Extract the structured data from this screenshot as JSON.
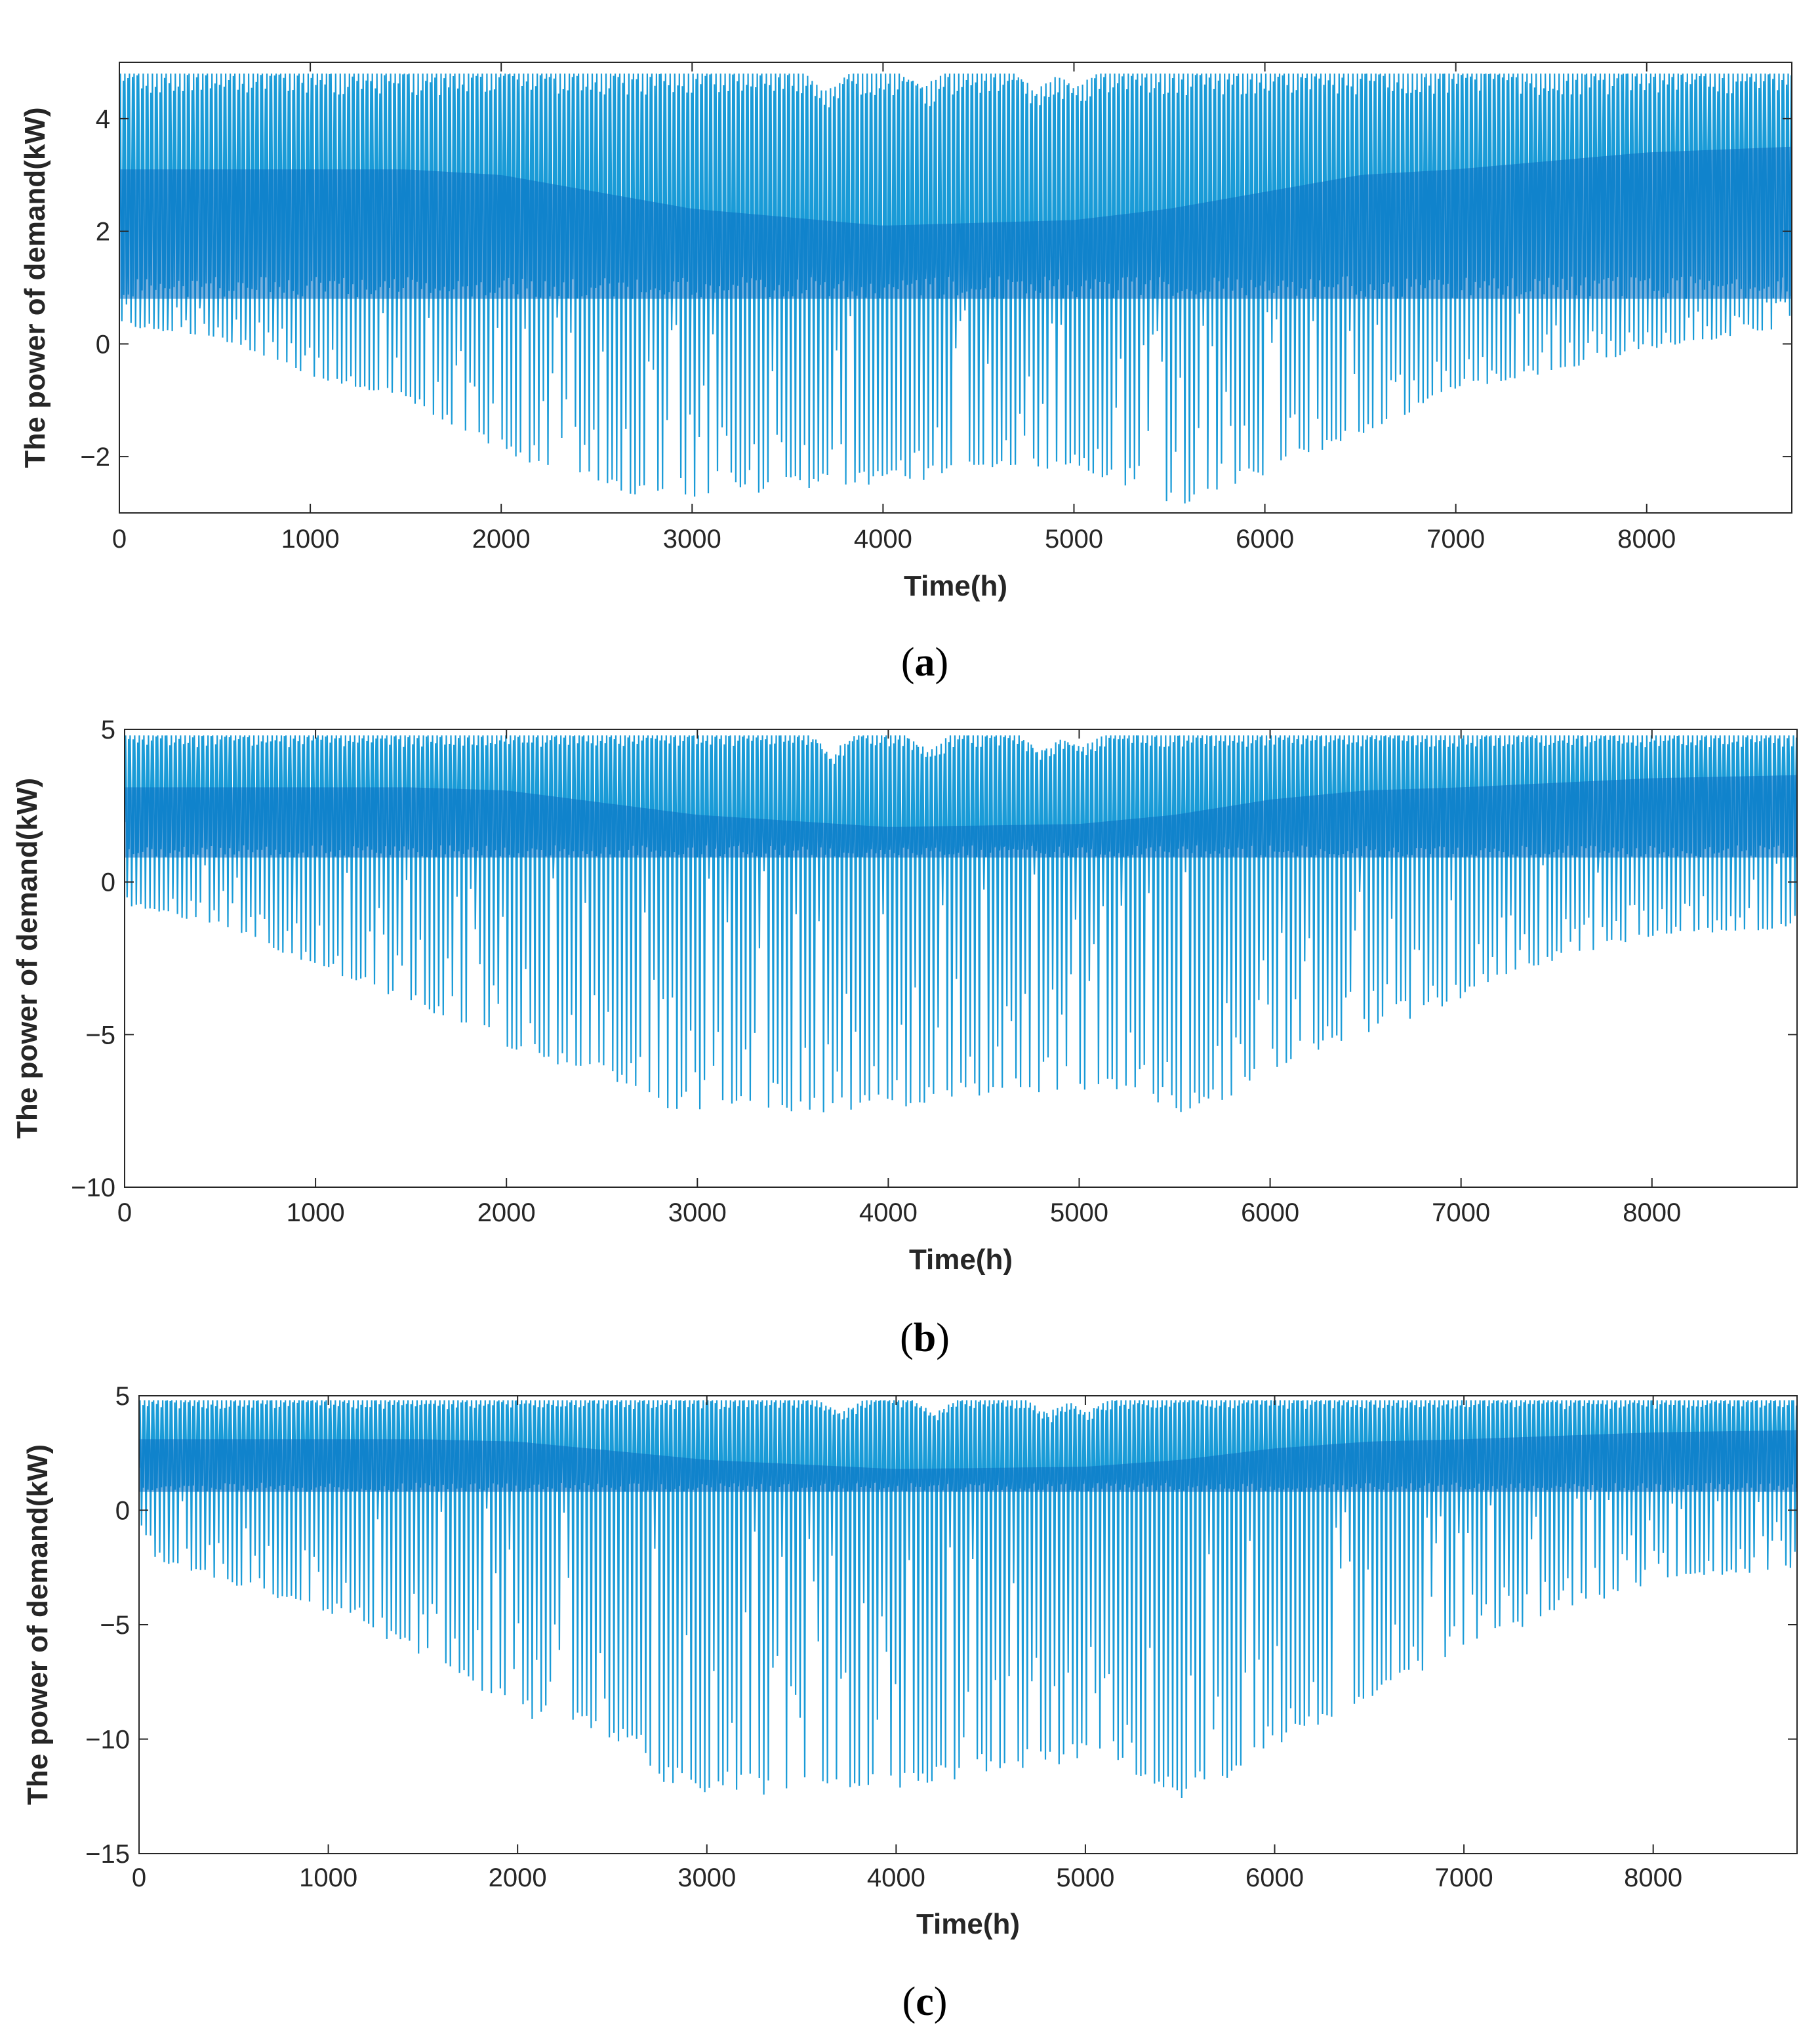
{
  "figure": {
    "colors": {
      "series": "#1a9bd7",
      "band": "#0a6fc2",
      "axis": "#262626",
      "background": "#ffffff"
    }
  },
  "chart_data": [
    {
      "id": "a",
      "type": "line",
      "caption_open": "(",
      "caption_letter": "a",
      "caption_close": ")",
      "xlabel": "Time(h)",
      "ylabel": "The power of demand(kW)",
      "xlim": [
        0,
        8760
      ],
      "ylim": [
        -3,
        5
      ],
      "xticks": [
        0,
        1000,
        2000,
        3000,
        4000,
        5000,
        6000,
        7000,
        8000
      ],
      "xtick_labels": [
        "0",
        "1000",
        "2000",
        "3000",
        "4000",
        "5000",
        "6000",
        "7000",
        "8000"
      ],
      "yticks": [
        -2,
        0,
        2,
        4
      ],
      "ytick_labels": [
        "−2",
        "0",
        "2",
        "4"
      ],
      "daily_max": 4.8,
      "band_low": 0.8,
      "envelope_min": [
        [
          0,
          0.3
        ],
        [
          500,
          0.1
        ],
        [
          1000,
          -0.6
        ],
        [
          1500,
          -1.0
        ],
        [
          2000,
          -2.0
        ],
        [
          2800,
          -2.8
        ],
        [
          3500,
          -2.6
        ],
        [
          4000,
          -2.5
        ],
        [
          4500,
          -2.3
        ],
        [
          5000,
          -2.2
        ],
        [
          5500,
          -2.9
        ],
        [
          5800,
          -2.6
        ],
        [
          6200,
          -2.0
        ],
        [
          6600,
          -1.5
        ],
        [
          7000,
          -0.8
        ],
        [
          7500,
          -0.5
        ],
        [
          8000,
          -0.1
        ],
        [
          8760,
          0.3
        ]
      ],
      "band_high": [
        [
          0,
          3.1
        ],
        [
          1500,
          3.1
        ],
        [
          2000,
          3.0
        ],
        [
          2500,
          2.7
        ],
        [
          3000,
          2.4
        ],
        [
          4000,
          2.1
        ],
        [
          5000,
          2.2
        ],
        [
          5500,
          2.4
        ],
        [
          6000,
          2.7
        ],
        [
          6500,
          3.0
        ],
        [
          7000,
          3.1
        ],
        [
          8000,
          3.4
        ],
        [
          8760,
          3.5
        ]
      ],
      "max_dips": [
        [
          3700,
          4.4
        ],
        [
          4200,
          4.5
        ],
        [
          4800,
          4.4
        ],
        [
          5000,
          4.5
        ]
      ]
    },
    {
      "id": "b",
      "type": "line",
      "caption_open": "(",
      "caption_letter": "b",
      "caption_close": ")",
      "xlabel": "Time(h)",
      "ylabel": "The power of demand(kW)",
      "xlim": [
        0,
        8760
      ],
      "ylim": [
        -10,
        5
      ],
      "xticks": [
        0,
        1000,
        2000,
        3000,
        4000,
        5000,
        6000,
        7000,
        8000
      ],
      "xtick_labels": [
        "0",
        "1000",
        "2000",
        "3000",
        "4000",
        "5000",
        "6000",
        "7000",
        "8000"
      ],
      "yticks": [
        -10,
        -5,
        0,
        5
      ],
      "ytick_labels": [
        "−10",
        "−5",
        "0",
        "5"
      ],
      "daily_max": 4.8,
      "band_low": 0.8,
      "envelope_min": [
        [
          0,
          -0.8
        ],
        [
          500,
          -1.5
        ],
        [
          1000,
          -2.8
        ],
        [
          1500,
          -4.0
        ],
        [
          2000,
          -5.5
        ],
        [
          2500,
          -6.5
        ],
        [
          2800,
          -7.5
        ],
        [
          3500,
          -7.7
        ],
        [
          4000,
          -7.5
        ],
        [
          4500,
          -7.0
        ],
        [
          5000,
          -6.8
        ],
        [
          5500,
          -7.7
        ],
        [
          5800,
          -7.0
        ],
        [
          6200,
          -5.8
        ],
        [
          6600,
          -4.8
        ],
        [
          7000,
          -3.8
        ],
        [
          7500,
          -2.5
        ],
        [
          8000,
          -1.8
        ],
        [
          8760,
          -1.5
        ]
      ],
      "band_high": [
        [
          0,
          3.1
        ],
        [
          1500,
          3.1
        ],
        [
          2000,
          3.0
        ],
        [
          2500,
          2.6
        ],
        [
          3000,
          2.2
        ],
        [
          4000,
          1.8
        ],
        [
          5000,
          1.9
        ],
        [
          5500,
          2.2
        ],
        [
          6000,
          2.7
        ],
        [
          6500,
          3.0
        ],
        [
          7000,
          3.1
        ],
        [
          8000,
          3.4
        ],
        [
          8760,
          3.5
        ]
      ],
      "max_dips": [
        [
          3700,
          4.0
        ],
        [
          4200,
          4.1
        ],
        [
          4800,
          4.0
        ],
        [
          5000,
          4.2
        ]
      ]
    },
    {
      "id": "c",
      "type": "line",
      "caption_open": "(",
      "caption_letter": "c",
      "caption_close": ")",
      "xlabel": "Time(h)",
      "ylabel": "The power of demand(kW)",
      "xlim": [
        0,
        8760
      ],
      "ylim": [
        -15,
        5
      ],
      "xticks": [
        0,
        1000,
        2000,
        3000,
        4000,
        5000,
        6000,
        7000,
        8000
      ],
      "xtick_labels": [
        "0",
        "1000",
        "2000",
        "3000",
        "4000",
        "5000",
        "6000",
        "7000",
        "8000"
      ],
      "yticks": [
        -15,
        -10,
        -5,
        0,
        5
      ],
      "ytick_labels": [
        "−15",
        "−10",
        "−5",
        "0",
        "5"
      ],
      "daily_max": 4.8,
      "band_low": 0.8,
      "envelope_min": [
        [
          0,
          -2.0
        ],
        [
          500,
          -3.3
        ],
        [
          1000,
          -4.5
        ],
        [
          1500,
          -6.5
        ],
        [
          2000,
          -9.0
        ],
        [
          2500,
          -10.0
        ],
        [
          2800,
          -12.2
        ],
        [
          3500,
          -12.7
        ],
        [
          4000,
          -12.4
        ],
        [
          4500,
          -11.5
        ],
        [
          5000,
          -11.0
        ],
        [
          5500,
          -12.6
        ],
        [
          5800,
          -11.5
        ],
        [
          6200,
          -9.5
        ],
        [
          6600,
          -7.8
        ],
        [
          7000,
          -6.0
        ],
        [
          7500,
          -4.5
        ],
        [
          8000,
          -3.2
        ],
        [
          8760,
          -2.5
        ]
      ],
      "band_high": [
        [
          0,
          3.1
        ],
        [
          1500,
          3.1
        ],
        [
          2000,
          3.0
        ],
        [
          2500,
          2.6
        ],
        [
          3000,
          2.2
        ],
        [
          4000,
          1.8
        ],
        [
          5000,
          1.9
        ],
        [
          5500,
          2.2
        ],
        [
          6000,
          2.7
        ],
        [
          6500,
          3.0
        ],
        [
          7000,
          3.1
        ],
        [
          8000,
          3.4
        ],
        [
          8760,
          3.5
        ]
      ],
      "max_dips": [
        [
          3700,
          4.0
        ],
        [
          4200,
          4.1
        ],
        [
          4800,
          4.0
        ],
        [
          5000,
          4.2
        ]
      ]
    }
  ]
}
